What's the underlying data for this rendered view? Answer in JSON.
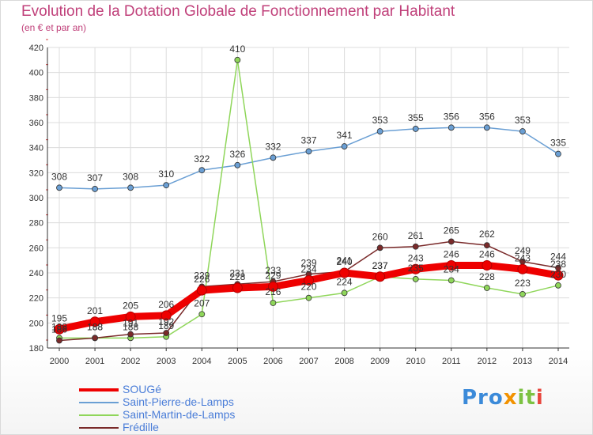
{
  "title": "Evolution de la Dotation Globale de Fonctionnement par Habitant",
  "subtitle": "(en € et par an)",
  "logo": {
    "p1": "Pro",
    "p2": "x",
    "p3": "it",
    "p4": "i"
  },
  "chart_data": {
    "type": "line",
    "title": "Evolution de la Dotation Globale de Fonctionnement par Habitant",
    "ylabel": "(en € et par an)",
    "xlabel": "",
    "ylim": [
      180,
      420
    ],
    "yticks": [
      180,
      200,
      220,
      240,
      260,
      280,
      300,
      320,
      340,
      360,
      380,
      400,
      420
    ],
    "categories": [
      "2000",
      "2001",
      "2002",
      "2003",
      "2004",
      "2005",
      "2006",
      "2007",
      "2008",
      "2009",
      "2010",
      "2011",
      "2012",
      "2013",
      "2014"
    ],
    "grid": true,
    "series": [
      {
        "name": "SOUGé",
        "color": "#ee0000",
        "values": [
          195,
          201,
          205,
          206,
          226,
          228,
          229,
          234,
          240,
          237,
          243,
          246,
          246,
          243,
          238
        ]
      },
      {
        "name": "Saint-Pierre-de-Lamps",
        "color": "#6a9fd4",
        "values": [
          308,
          307,
          308,
          310,
          322,
          326,
          332,
          337,
          341,
          353,
          355,
          356,
          356,
          353,
          335
        ]
      },
      {
        "name": "Saint-Martin-de-Lamps",
        "color": "#8fd65a",
        "values": [
          188,
          188,
          188,
          189,
          207,
          410,
          216,
          220,
          224,
          237,
          235,
          234,
          228,
          223,
          230
        ]
      },
      {
        "name": "Frédille",
        "color": "#7a2a2a",
        "values": [
          186,
          188,
          191,
          192,
          229,
          231,
          233,
          239,
          241,
          260,
          261,
          265,
          262,
          249,
          244
        ]
      }
    ]
  }
}
